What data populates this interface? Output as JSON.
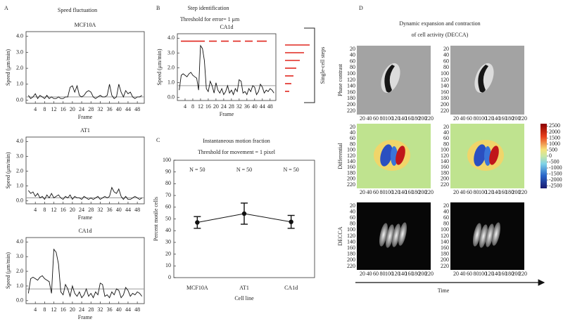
{
  "panels": [
    {
      "letter": "A",
      "title": "Speed fluctuation"
    },
    {
      "letter": "B",
      "title": "Step identification",
      "subtitle": "Threshold for error= 1 μm",
      "side_label": "Single-cell steps"
    },
    {
      "letter": "C",
      "title": "Instantaneous motion fraction",
      "subtitle": "Threshold for movement = 1 pixel"
    },
    {
      "letter": "D",
      "title": [
        "Dynamic expansion and contraction",
        "of cell activity (DECCA)"
      ]
    }
  ],
  "chart_data": [
    {
      "type": "line",
      "title": "MCF10A",
      "x_label": "Frame",
      "y_label": "Speed (μm/min)",
      "color": "#111111",
      "x": [
        1,
        2,
        3,
        4,
        5,
        6,
        7,
        8,
        9,
        10,
        11,
        12,
        13,
        14,
        15,
        16,
        17,
        18,
        19,
        20,
        21,
        22,
        23,
        24,
        25,
        26,
        27,
        28,
        29,
        30,
        31,
        32,
        33,
        34,
        35,
        36,
        37,
        38,
        39,
        40,
        41,
        42,
        43,
        44,
        45,
        46,
        47,
        48,
        49,
        50
      ],
      "values": [
        0.3,
        0.1,
        0.2,
        0.4,
        0.1,
        0.3,
        0.2,
        0.1,
        0.3,
        0.1,
        0.2,
        0.1,
        0.1,
        0.2,
        0.1,
        0.1,
        0.2,
        0.2,
        0.8,
        0.9,
        0.5,
        0.9,
        0.3,
        0.2,
        0.3,
        0.5,
        0.6,
        0.5,
        0.2,
        0.1,
        0.2,
        0.3,
        0.2,
        0.2,
        0.3,
        1.0,
        0.3,
        0.1,
        0.2,
        1.0,
        0.5,
        0.2,
        0.6,
        0.4,
        0.5,
        0.2,
        0.1,
        0.2,
        0.2,
        0.3
      ],
      "threshold": 0.2,
      "threshold_color": "#9a9a9a",
      "xlim": [
        0,
        51
      ],
      "ylim": [
        -0.2,
        4.3
      ],
      "xticks": [
        4,
        8,
        12,
        16,
        20,
        24,
        28,
        32,
        36,
        40,
        44,
        48
      ],
      "yticks": [
        {
          "value": 0,
          "label": "0.0"
        },
        {
          "value": 1,
          "label": "1.0"
        },
        {
          "value": 2,
          "label": "2.0"
        },
        {
          "value": 3,
          "label": "3.0"
        },
        {
          "value": 4,
          "label": "4.0"
        }
      ]
    },
    {
      "type": "line",
      "title": "AT1",
      "x_label": "Frame",
      "y_label": "Speed (μm/min)",
      "color": "#111111",
      "x": [
        1,
        2,
        3,
        4,
        5,
        6,
        7,
        8,
        9,
        10,
        11,
        12,
        13,
        14,
        15,
        16,
        17,
        18,
        19,
        20,
        21,
        22,
        23,
        24,
        25,
        26,
        27,
        28,
        29,
        30,
        31,
        32,
        33,
        34,
        35,
        36,
        37,
        38,
        39,
        40,
        41,
        42,
        43,
        44,
        45,
        46,
        47,
        48,
        49,
        50
      ],
      "values": [
        0.7,
        0.5,
        0.6,
        0.3,
        0.5,
        0.2,
        0.3,
        0.1,
        0.4,
        0.2,
        0.5,
        0.2,
        0.3,
        0.4,
        0.2,
        0.1,
        0.3,
        0.2,
        0.4,
        0.1,
        0.3,
        0.2,
        0.2,
        0.1,
        0.3,
        0.2,
        0.1,
        0.2,
        0.1,
        0.2,
        0.3,
        0.1,
        0.2,
        0.3,
        0.2,
        0.3,
        0.9,
        0.6,
        0.5,
        0.8,
        0.3,
        0.1,
        0.3,
        0.1,
        0.1,
        0.2,
        0.3,
        0.2,
        0.1,
        0.2
      ],
      "threshold": 0.2,
      "threshold_color": "#9a9a9a",
      "xlim": [
        0,
        51
      ],
      "ylim": [
        -0.2,
        4.3
      ],
      "xticks": [
        4,
        8,
        12,
        16,
        20,
        24,
        28,
        32,
        36,
        40,
        44,
        48
      ],
      "yticks": [
        {
          "value": 0,
          "label": "0.0"
        },
        {
          "value": 1,
          "label": "1.0"
        },
        {
          "value": 2,
          "label": "2.0"
        },
        {
          "value": 3,
          "label": "3.0"
        },
        {
          "value": 4,
          "label": "4.0"
        }
      ]
    },
    {
      "type": "line",
      "title": "CA1d",
      "x_label": "Frame",
      "y_label": "Speed (μm/min)",
      "color": "#111111",
      "x": [
        1,
        2,
        3,
        4,
        5,
        6,
        7,
        8,
        9,
        10,
        11,
        12,
        13,
        14,
        15,
        16,
        17,
        18,
        19,
        20,
        21,
        22,
        23,
        24,
        25,
        26,
        27,
        28,
        29,
        30,
        31,
        32,
        33,
        34,
        35,
        36,
        37,
        38,
        39,
        40,
        41,
        42,
        43,
        44,
        45,
        46,
        47,
        48,
        49,
        50
      ],
      "values": [
        0.5,
        1.5,
        1.6,
        1.5,
        1.4,
        1.6,
        1.7,
        1.5,
        1.4,
        1.3,
        0.5,
        3.5,
        3.3,
        2.5,
        0.6,
        0.4,
        1.1,
        0.8,
        0.3,
        1.0,
        0.5,
        0.3,
        0.6,
        0.2,
        0.4,
        0.8,
        0.3,
        0.5,
        0.2,
        0.6,
        0.4,
        1.2,
        1.1,
        0.3,
        0.4,
        0.2,
        0.6,
        0.4,
        0.8,
        0.7,
        0.2,
        0.4,
        0.9,
        0.7,
        0.3,
        0.5,
        0.4,
        0.6,
        0.5,
        0.3
      ],
      "threshold": 0.8,
      "threshold_color": "#9a9a9a",
      "xlim": [
        0,
        51
      ],
      "ylim": [
        -0.2,
        4.3
      ],
      "xticks": [
        4,
        8,
        12,
        16,
        20,
        24,
        28,
        32,
        36,
        40,
        44,
        48
      ],
      "yticks": [
        {
          "value": 0,
          "label": "0.0"
        },
        {
          "value": 1,
          "label": "1.0"
        },
        {
          "value": 2,
          "label": "2.0"
        },
        {
          "value": 3,
          "label": "3.0"
        },
        {
          "value": 4,
          "label": "4.0"
        }
      ]
    },
    {
      "type": "line",
      "title": "CA1d",
      "x_label": "Frame",
      "y_label": "Speed (μm/min)",
      "color": "#111111",
      "x": [
        1,
        2,
        3,
        4,
        5,
        6,
        7,
        8,
        9,
        10,
        11,
        12,
        13,
        14,
        15,
        16,
        17,
        18,
        19,
        20,
        21,
        22,
        23,
        24,
        25,
        26,
        27,
        28,
        29,
        30,
        31,
        32,
        33,
        34,
        35,
        36,
        37,
        38,
        39,
        40,
        41,
        42,
        43,
        44,
        45,
        46,
        47,
        48,
        49,
        50
      ],
      "values": [
        0.5,
        1.5,
        1.6,
        1.5,
        1.4,
        1.6,
        1.7,
        1.5,
        1.4,
        1.3,
        0.5,
        3.5,
        3.3,
        2.5,
        0.6,
        0.4,
        1.1,
        0.8,
        0.3,
        1.0,
        0.5,
        0.3,
        0.6,
        0.2,
        0.4,
        0.8,
        0.3,
        0.5,
        0.2,
        0.6,
        0.4,
        1.2,
        1.1,
        0.3,
        0.4,
        0.2,
        0.6,
        0.4,
        0.8,
        0.7,
        0.2,
        0.4,
        0.9,
        0.7,
        0.3,
        0.5,
        0.4,
        0.6,
        0.5,
        0.3
      ],
      "threshold": 0.8,
      "threshold_color": "#9a9a9a",
      "step_level": 3.8,
      "step_color": "#e0261e",
      "xlim": [
        0,
        51
      ],
      "ylim": [
        -0.2,
        4.3
      ],
      "xticks": [
        4,
        8,
        12,
        16,
        20,
        24,
        28,
        32,
        36,
        40,
        44,
        48
      ],
      "yticks": [
        {
          "value": 0,
          "label": "0.0"
        },
        {
          "value": 1,
          "label": "1.0"
        },
        {
          "value": 2,
          "label": "2.0"
        },
        {
          "value": 3,
          "label": "3.0"
        },
        {
          "value": 4,
          "label": "4.0"
        }
      ]
    },
    {
      "type": "errorbar",
      "x_label": "Cell line",
      "y_label": "Percent motile cells",
      "color": "#111111",
      "categories": [
        "MCF10A",
        "AT1",
        "CA1d"
      ],
      "values": [
        47,
        54.5,
        47.5
      ],
      "errors": [
        5,
        9,
        5.5
      ],
      "annotations": [
        "N = 50",
        "N = 50",
        "N = 50"
      ],
      "ylim": [
        0,
        100
      ],
      "yticks": [
        0,
        10,
        20,
        30,
        40,
        50,
        60,
        70,
        80,
        90,
        100
      ]
    }
  ],
  "panel_d": {
    "row_labels": [
      "Phase contrast",
      "Differential",
      "DECCA"
    ],
    "xticks": [
      20,
      40,
      60,
      80,
      100,
      120,
      140,
      160,
      180,
      200,
      220
    ],
    "yticks": [
      20,
      40,
      60,
      80,
      100,
      120,
      140,
      160,
      180,
      200,
      220
    ],
    "colorbar_lim": [
      -2700,
      2700
    ],
    "colorbar_ticks": [
      2500,
      2000,
      1500,
      1000,
      500,
      0,
      -500,
      -1000,
      -1500,
      -2000,
      -2500
    ],
    "axis_label": "Time"
  }
}
